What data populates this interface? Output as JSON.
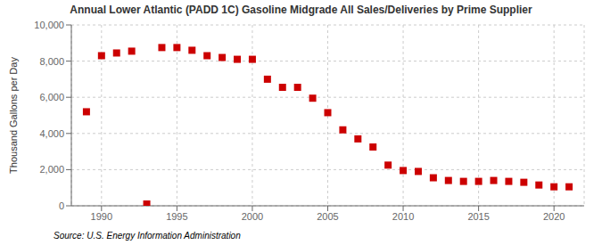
{
  "chart_data": {
    "type": "scatter",
    "title": "Annual Lower Atlantic (PADD 1C) Gasoline Midgrade All Sales/Deliveries by Prime Supplier",
    "y_label": "Thousand Gallons per Day",
    "annotations": [
      "Source: U.S. Energy Information Administration"
    ],
    "x": [
      1989,
      1990,
      1991,
      1992,
      1993,
      1994,
      1995,
      1996,
      1997,
      1998,
      1999,
      2000,
      2001,
      2002,
      2003,
      2004,
      2005,
      2006,
      2007,
      2008,
      2009,
      2010,
      2011,
      2012,
      2013,
      2014,
      2015,
      2016,
      2017,
      2018,
      2019,
      2020,
      2021
    ],
    "values": [
      5200,
      8300,
      8450,
      8550,
      100,
      8750,
      8750,
      8600,
      8300,
      8200,
      8100,
      8100,
      7000,
      6550,
      6550,
      5950,
      5150,
      4200,
      3700,
      3250,
      2250,
      1950,
      1900,
      1550,
      1400,
      1350,
      1350,
      1400,
      1350,
      1300,
      1150,
      1050,
      1050
    ],
    "color": "#cc0000",
    "marker": "square",
    "xlim": [
      1988,
      2022
    ],
    "xticks": [
      1990,
      1995,
      2000,
      2005,
      2010,
      2015,
      2020
    ],
    "ylim": [
      0,
      10000
    ],
    "yticks": [
      0,
      {
        "value": 2000,
        "label": "2,000"
      },
      {
        "value": 4000,
        "label": "4,000"
      },
      {
        "value": 6000,
        "label": "6,000"
      },
      {
        "value": 8000,
        "label": "8,000"
      },
      {
        "value": 10000,
        "label": "10,000"
      }
    ],
    "grid": true
  }
}
